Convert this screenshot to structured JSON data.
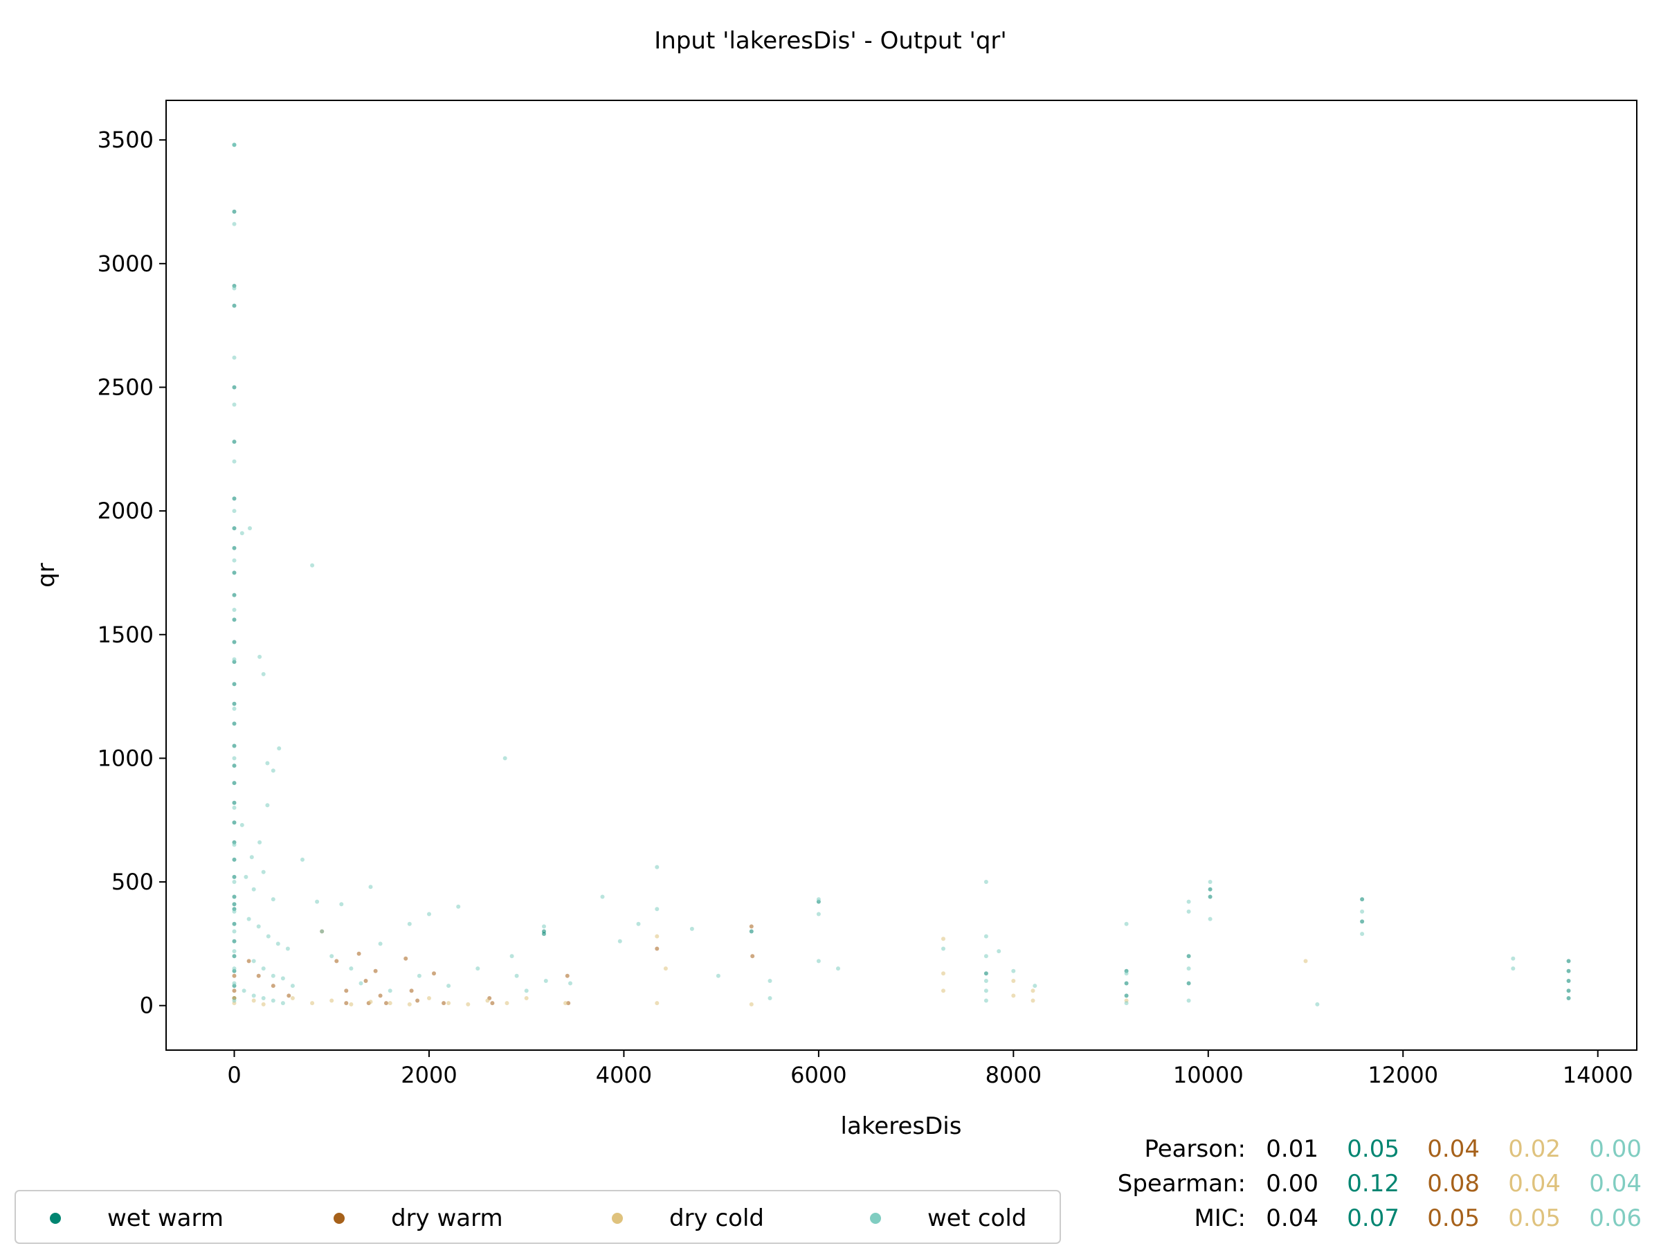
{
  "chart_data": {
    "type": "scatter",
    "title": "Input 'lakeresDis' - Output 'qr'",
    "xlabel": "lakeresDis",
    "ylabel": "qr",
    "xlim": [
      -700,
      14400
    ],
    "ylim": [
      -180,
      3660
    ],
    "xticks": [
      0,
      2000,
      4000,
      6000,
      8000,
      10000,
      12000,
      14000
    ],
    "yticks": [
      0,
      500,
      1000,
      1500,
      2000,
      2500,
      3000,
      3500
    ],
    "grid": false,
    "legend_position": "bottom-left",
    "series": [
      {
        "name": "wet warm",
        "color": "#018571",
        "points": [
          [
            0,
            3480
          ],
          [
            0,
            3210
          ],
          [
            0,
            2910
          ],
          [
            0,
            2830
          ],
          [
            0,
            2500
          ],
          [
            0,
            2280
          ],
          [
            0,
            2050
          ],
          [
            0,
            1930
          ],
          [
            0,
            1850
          ],
          [
            0,
            1750
          ],
          [
            0,
            1660
          ],
          [
            0,
            1560
          ],
          [
            0,
            1470
          ],
          [
            0,
            1390
          ],
          [
            0,
            1300
          ],
          [
            0,
            1220
          ],
          [
            0,
            1140
          ],
          [
            0,
            1050
          ],
          [
            0,
            970
          ],
          [
            0,
            900
          ],
          [
            0,
            820
          ],
          [
            0,
            740
          ],
          [
            0,
            660
          ],
          [
            0,
            590
          ],
          [
            0,
            520
          ],
          [
            0,
            440
          ],
          [
            0,
            410
          ],
          [
            0,
            390
          ],
          [
            0,
            330
          ],
          [
            0,
            260
          ],
          [
            0,
            200
          ],
          [
            0,
            140
          ],
          [
            0,
            80
          ],
          [
            0,
            30
          ],
          [
            3180,
            300
          ],
          [
            3180,
            290
          ],
          [
            5310,
            300
          ],
          [
            6000,
            420
          ],
          [
            7720,
            130
          ],
          [
            9160,
            140
          ],
          [
            9160,
            90
          ],
          [
            9160,
            40
          ],
          [
            9800,
            200
          ],
          [
            9800,
            90
          ],
          [
            10020,
            470
          ],
          [
            10020,
            440
          ],
          [
            11580,
            430
          ],
          [
            11580,
            340
          ],
          [
            13700,
            180
          ],
          [
            13700,
            140
          ],
          [
            13700,
            100
          ],
          [
            13700,
            60
          ],
          [
            13700,
            30
          ]
        ]
      },
      {
        "name": "dry warm",
        "color": "#a6611a",
        "points": [
          [
            0,
            120
          ],
          [
            0,
            60
          ],
          [
            0,
            30
          ],
          [
            150,
            180
          ],
          [
            250,
            120
          ],
          [
            400,
            80
          ],
          [
            560,
            40
          ],
          [
            900,
            300
          ],
          [
            1050,
            180
          ],
          [
            1150,
            60
          ],
          [
            1150,
            10
          ],
          [
            1280,
            210
          ],
          [
            1350,
            100
          ],
          [
            1380,
            10
          ],
          [
            1450,
            140
          ],
          [
            1500,
            40
          ],
          [
            1560,
            10
          ],
          [
            1760,
            190
          ],
          [
            1820,
            60
          ],
          [
            1880,
            20
          ],
          [
            2050,
            130
          ],
          [
            2150,
            10
          ],
          [
            2620,
            30
          ],
          [
            2650,
            10
          ],
          [
            3420,
            120
          ],
          [
            3430,
            10
          ],
          [
            4340,
            230
          ],
          [
            5310,
            320
          ],
          [
            5320,
            200
          ]
        ]
      },
      {
        "name": "dry cold",
        "color": "#dfc27d",
        "points": [
          [
            0,
            30
          ],
          [
            0,
            10
          ],
          [
            200,
            20
          ],
          [
            300,
            5
          ],
          [
            600,
            30
          ],
          [
            800,
            10
          ],
          [
            1000,
            20
          ],
          [
            1200,
            5
          ],
          [
            1400,
            15
          ],
          [
            1600,
            10
          ],
          [
            1800,
            5
          ],
          [
            2000,
            30
          ],
          [
            2200,
            10
          ],
          [
            2400,
            5
          ],
          [
            2600,
            20
          ],
          [
            2800,
            10
          ],
          [
            3000,
            30
          ],
          [
            3400,
            10
          ],
          [
            4340,
            10
          ],
          [
            4340,
            280
          ],
          [
            4430,
            150
          ],
          [
            5310,
            5
          ],
          [
            7280,
            270
          ],
          [
            7280,
            130
          ],
          [
            7280,
            60
          ],
          [
            8000,
            100
          ],
          [
            8000,
            40
          ],
          [
            8200,
            60
          ],
          [
            8200,
            20
          ],
          [
            9160,
            20
          ],
          [
            11000,
            180
          ]
        ]
      },
      {
        "name": "wet cold",
        "color": "#80cdc1",
        "points": [
          [
            0,
            3480
          ],
          [
            0,
            3160
          ],
          [
            0,
            2900
          ],
          [
            0,
            2620
          ],
          [
            0,
            2430
          ],
          [
            0,
            2200
          ],
          [
            0,
            2000
          ],
          [
            0,
            1800
          ],
          [
            0,
            1600
          ],
          [
            0,
            1400
          ],
          [
            0,
            1200
          ],
          [
            0,
            1000
          ],
          [
            0,
            800
          ],
          [
            0,
            650
          ],
          [
            0,
            500
          ],
          [
            0,
            380
          ],
          [
            0,
            300
          ],
          [
            0,
            220
          ],
          [
            0,
            150
          ],
          [
            0,
            90
          ],
          [
            0,
            20
          ],
          [
            80,
            1910
          ],
          [
            160,
            1930
          ],
          [
            260,
            1410
          ],
          [
            300,
            1340
          ],
          [
            340,
            980
          ],
          [
            400,
            950
          ],
          [
            460,
            1040
          ],
          [
            340,
            810
          ],
          [
            80,
            730
          ],
          [
            180,
            600
          ],
          [
            260,
            660
          ],
          [
            120,
            520
          ],
          [
            200,
            470
          ],
          [
            300,
            540
          ],
          [
            400,
            430
          ],
          [
            150,
            350
          ],
          [
            250,
            320
          ],
          [
            350,
            280
          ],
          [
            450,
            250
          ],
          [
            550,
            230
          ],
          [
            200,
            180
          ],
          [
            300,
            150
          ],
          [
            400,
            120
          ],
          [
            500,
            110
          ],
          [
            600,
            80
          ],
          [
            100,
            60
          ],
          [
            200,
            40
          ],
          [
            300,
            30
          ],
          [
            400,
            20
          ],
          [
            500,
            10
          ],
          [
            700,
            590
          ],
          [
            800,
            1780
          ],
          [
            850,
            420
          ],
          [
            900,
            300
          ],
          [
            1000,
            200
          ],
          [
            1100,
            410
          ],
          [
            1200,
            150
          ],
          [
            1300,
            90
          ],
          [
            1400,
            480
          ],
          [
            1500,
            250
          ],
          [
            1600,
            60
          ],
          [
            1800,
            330
          ],
          [
            1900,
            120
          ],
          [
            2000,
            370
          ],
          [
            2200,
            80
          ],
          [
            2300,
            400
          ],
          [
            2500,
            150
          ],
          [
            2780,
            1000
          ],
          [
            2850,
            200
          ],
          [
            2900,
            120
          ],
          [
            3000,
            60
          ],
          [
            3180,
            320
          ],
          [
            3200,
            100
          ],
          [
            3450,
            90
          ],
          [
            3780,
            440
          ],
          [
            3960,
            260
          ],
          [
            4150,
            330
          ],
          [
            4340,
            560
          ],
          [
            4340,
            390
          ],
          [
            4700,
            310
          ],
          [
            4970,
            120
          ],
          [
            5500,
            100
          ],
          [
            5500,
            30
          ],
          [
            6000,
            430
          ],
          [
            6000,
            370
          ],
          [
            6000,
            180
          ],
          [
            6200,
            150
          ],
          [
            7280,
            230
          ],
          [
            7720,
            500
          ],
          [
            7720,
            280
          ],
          [
            7720,
            200
          ],
          [
            7720,
            100
          ],
          [
            7720,
            60
          ],
          [
            7720,
            20
          ],
          [
            7850,
            220
          ],
          [
            8000,
            140
          ],
          [
            8220,
            80
          ],
          [
            9160,
            330
          ],
          [
            9160,
            130
          ],
          [
            9160,
            10
          ],
          [
            9800,
            420
          ],
          [
            9800,
            380
          ],
          [
            9800,
            150
          ],
          [
            9800,
            20
          ],
          [
            10020,
            500
          ],
          [
            10020,
            350
          ],
          [
            11120,
            5
          ],
          [
            11580,
            380
          ],
          [
            11580,
            290
          ],
          [
            13130,
            190
          ],
          [
            13130,
            150
          ]
        ]
      }
    ],
    "stats": [
      {
        "label": "Pearson:",
        "values": [
          "0.01",
          "0.05",
          "0.04",
          "0.02",
          "0.00"
        ]
      },
      {
        "label": "Spearman:",
        "values": [
          "0.00",
          "0.12",
          "0.08",
          "0.04",
          "0.04"
        ]
      },
      {
        "label": "MIC:",
        "values": [
          "0.04",
          "0.07",
          "0.05",
          "0.05",
          "0.06"
        ]
      }
    ],
    "stat_colors": [
      "#000000",
      "#018571",
      "#a6611a",
      "#dfc27d",
      "#80cdc1"
    ]
  }
}
